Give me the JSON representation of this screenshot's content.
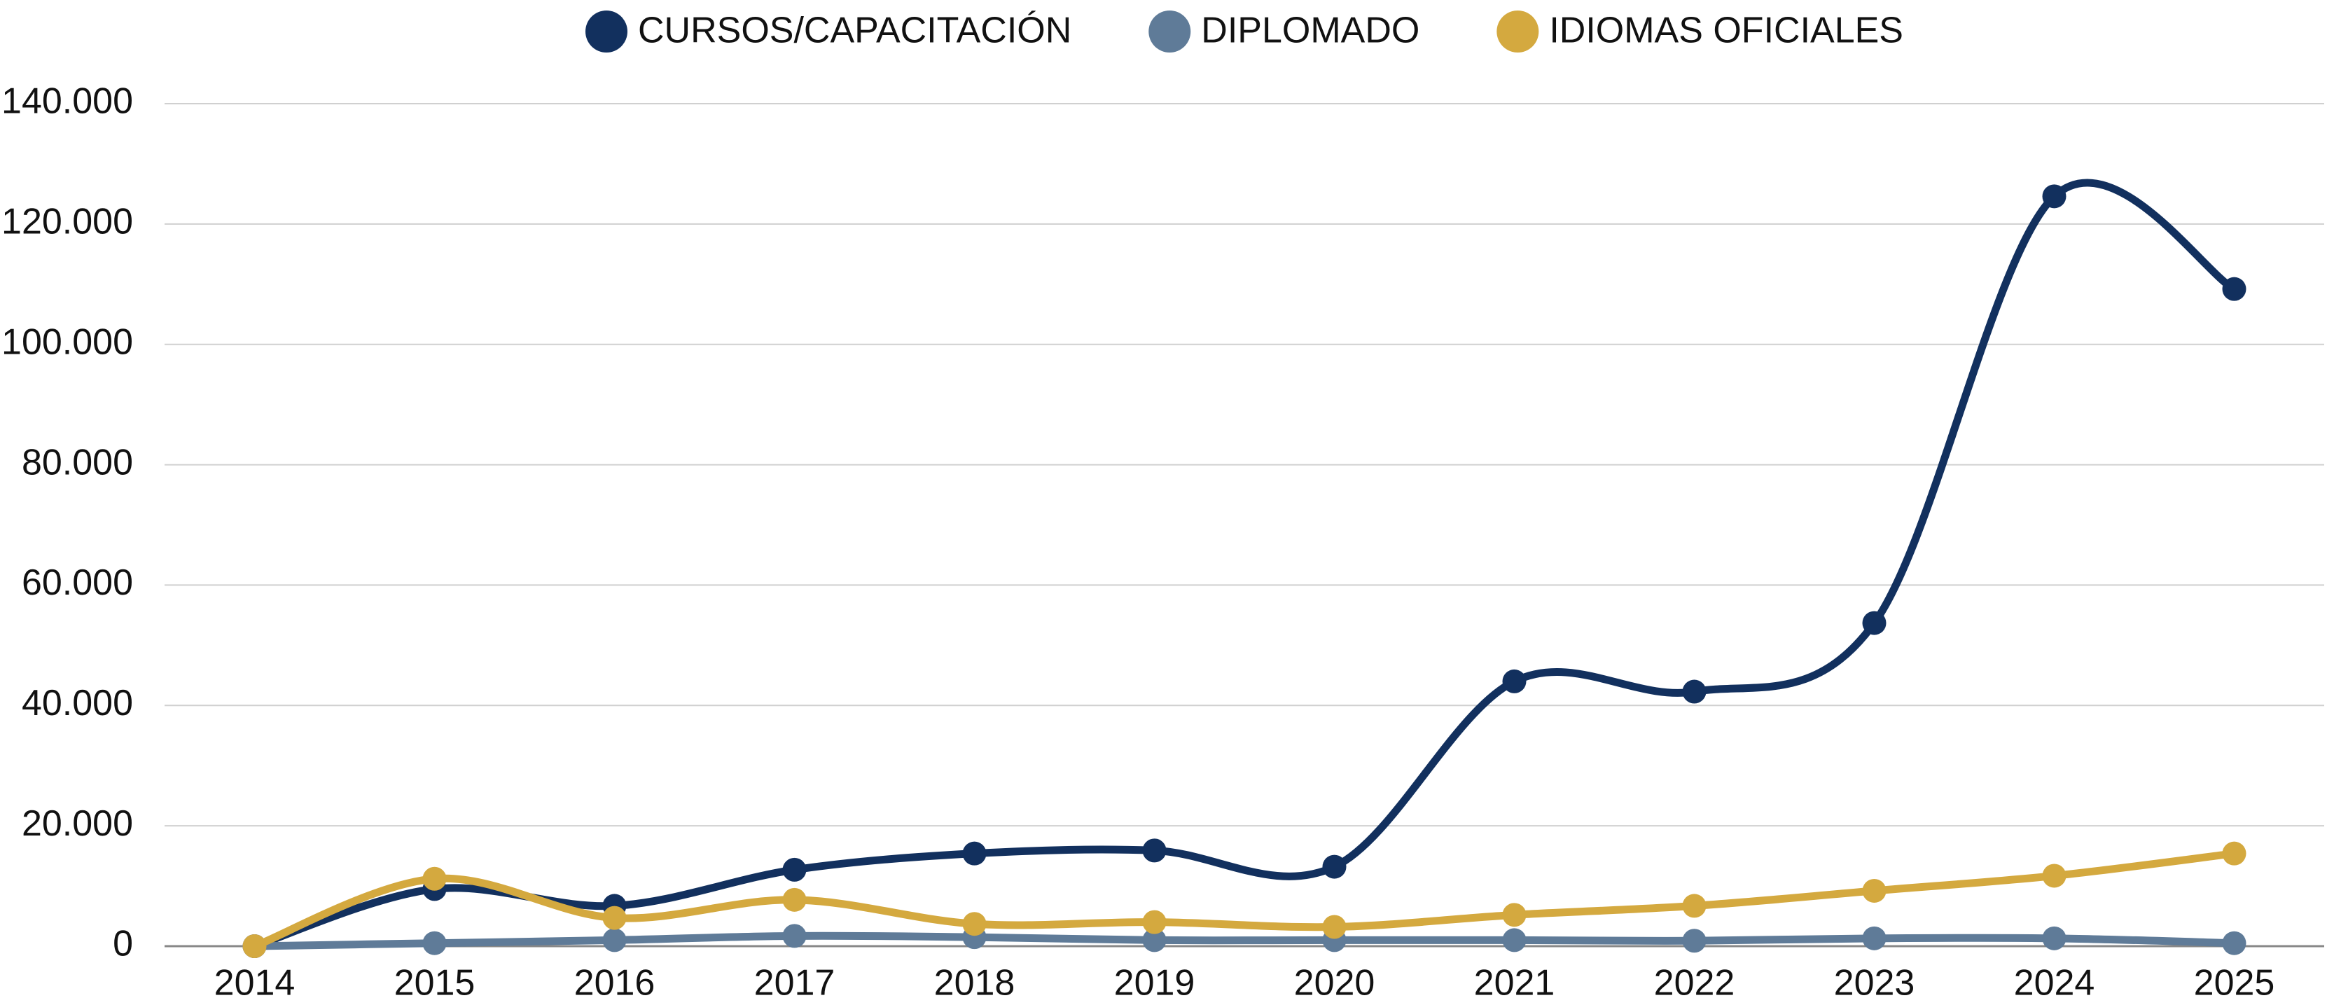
{
  "chart_data": {
    "type": "line",
    "categories": [
      "2014",
      "2015",
      "2016",
      "2017",
      "2018",
      "2019",
      "2020",
      "2021",
      "2022",
      "2023",
      "2024",
      "2025"
    ],
    "series": [
      {
        "name": "CURSOS/CAPACITACIÓN",
        "color": "#12305e",
        "values": [
          0,
          9500,
          6700,
          12700,
          15400,
          15900,
          13200,
          44000,
          42300,
          53700,
          124600,
          109200
        ]
      },
      {
        "name": "DIPLOMADO",
        "color": "#5f7b98",
        "values": [
          0,
          500,
          1000,
          1700,
          1500,
          1000,
          1000,
          1000,
          900,
          1300,
          1300,
          500
        ]
      },
      {
        "name": "IDIOMAS OFICIALES",
        "color": "#d4a93f",
        "values": [
          0,
          11200,
          4700,
          7700,
          3700,
          4000,
          3200,
          5200,
          6700,
          9200,
          11700,
          15400
        ]
      }
    ],
    "ylim": [
      0,
      140000
    ],
    "yticks": [
      0,
      {
        "value": 20000,
        "label": "20.000"
      },
      {
        "value": 40000,
        "label": "40.000"
      },
      {
        "value": 60000,
        "label": "60.000"
      },
      {
        "value": 80000,
        "label": "80.000"
      },
      {
        "value": 100000,
        "label": "100.000"
      },
      {
        "value": 120000,
        "label": "120.000"
      },
      {
        "value": 140000,
        "label": "140.000"
      }
    ],
    "grid": true,
    "legend": "top"
  }
}
